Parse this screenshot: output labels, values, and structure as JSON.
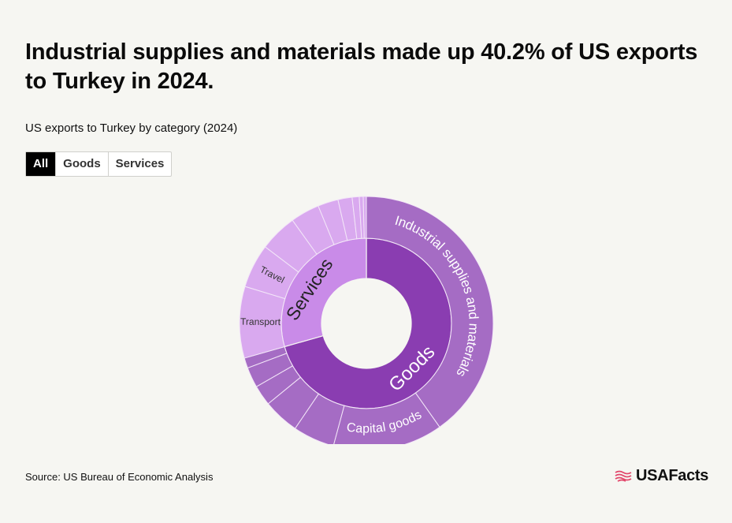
{
  "headline": "Industrial supplies and materials made up 40.2% of US exports to Turkey in 2024.",
  "subtitle": "US exports to Turkey by category (2024)",
  "tabs": [
    {
      "label": "All",
      "active": true
    },
    {
      "label": "Goods",
      "active": false
    },
    {
      "label": "Services",
      "active": false
    }
  ],
  "source": "Source: US Bureau of Economic Analysis",
  "brand": "USAFacts",
  "colors": {
    "goods_inner": "#8a3db1",
    "services_inner": "#c98be8",
    "goods_outer": "#a56cc4",
    "services_outer": "#d9a9ef"
  },
  "chart_data": {
    "type": "sunburst",
    "title": "US exports to Turkey by category (2024)",
    "unit": "percent of total",
    "inner": [
      {
        "name": "Goods",
        "value": 70.6
      },
      {
        "name": "Services",
        "value": 29.4
      }
    ],
    "outer": [
      {
        "name": "Industrial supplies and materials",
        "parent": "Goods",
        "value": 40.2
      },
      {
        "name": "Capital goods",
        "parent": "Goods",
        "value": 14.0
      },
      {
        "name": "",
        "parent": "Goods",
        "value": 5.3
      },
      {
        "name": "",
        "parent": "Goods",
        "value": 4.6
      },
      {
        "name": "",
        "parent": "Goods",
        "value": 2.6
      },
      {
        "name": "",
        "parent": "Goods",
        "value": 2.6
      },
      {
        "name": "",
        "parent": "Goods",
        "value": 1.3
      },
      {
        "name": "Transport",
        "parent": "Services",
        "value": 9.1
      },
      {
        "name": "Travel",
        "parent": "Services",
        "value": 5.6
      },
      {
        "name": "",
        "parent": "Services",
        "value": 4.8
      },
      {
        "name": "",
        "parent": "Services",
        "value": 3.7
      },
      {
        "name": "",
        "parent": "Services",
        "value": 2.6
      },
      {
        "name": "",
        "parent": "Services",
        "value": 1.8
      },
      {
        "name": "",
        "parent": "Services",
        "value": 0.9
      },
      {
        "name": "",
        "parent": "Services",
        "value": 0.5
      },
      {
        "name": "",
        "parent": "Services",
        "value": 0.4
      }
    ]
  }
}
